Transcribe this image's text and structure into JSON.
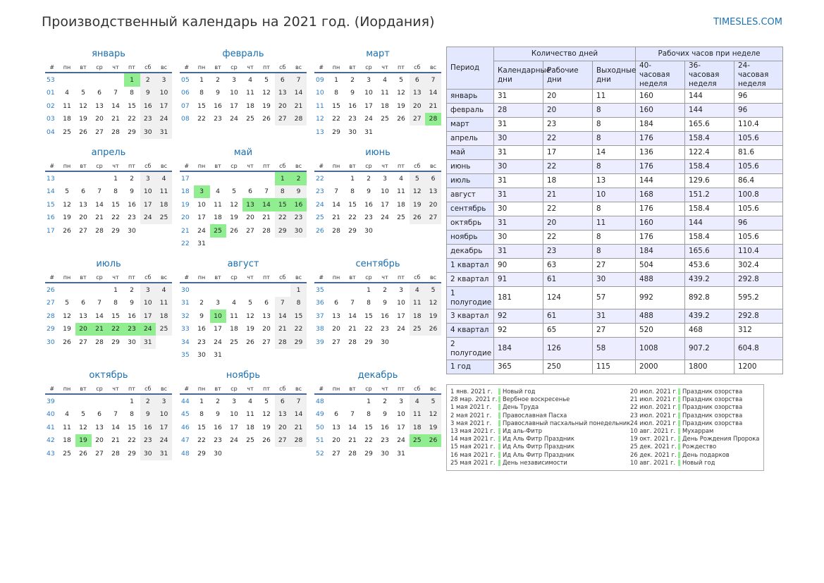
{
  "header": {
    "title": "Производственный календарь на 2021 год. (Иордания)",
    "site": "TIMESLES.COM"
  },
  "weekday_header": [
    "#",
    "пн",
    "вт",
    "ср",
    "чт",
    "пт",
    "сб",
    "вс"
  ],
  "months": [
    {
      "name": "январь",
      "first_day": 4,
      "days": 31,
      "first_week": 53,
      "holidays": [
        1
      ],
      "weeks": [
        "53",
        "01",
        "02",
        "03",
        "04"
      ]
    },
    {
      "name": "февраль",
      "first_day": 0,
      "days": 28,
      "holidays": [],
      "weeks": [
        "05",
        "06",
        "07",
        "08"
      ]
    },
    {
      "name": "март",
      "first_day": 0,
      "days": 31,
      "holidays": [
        28
      ],
      "weeks": [
        "09",
        "10",
        "11",
        "12",
        "13"
      ]
    },
    {
      "name": "апрель",
      "first_day": 3,
      "days": 30,
      "holidays": [],
      "weeks": [
        "13",
        "14",
        "15",
        "16",
        "17"
      ]
    },
    {
      "name": "май",
      "first_day": 5,
      "days": 31,
      "holidays": [
        1,
        2,
        3,
        13,
        14,
        15,
        16,
        25
      ],
      "weeks": [
        "17",
        "18",
        "19",
        "20",
        "21",
        "22"
      ]
    },
    {
      "name": "июнь",
      "first_day": 1,
      "days": 30,
      "holidays": [],
      "weeks": [
        "22",
        "23",
        "24",
        "25",
        "26"
      ]
    },
    {
      "name": "июль",
      "first_day": 3,
      "days": 31,
      "holidays": [
        20,
        21,
        22,
        23,
        24
      ],
      "weeks": [
        "26",
        "27",
        "28",
        "29",
        "30"
      ]
    },
    {
      "name": "август",
      "first_day": 6,
      "days": 31,
      "holidays": [
        10
      ],
      "weeks": [
        "30",
        "31",
        "32",
        "33",
        "34",
        "35"
      ]
    },
    {
      "name": "сентябрь",
      "first_day": 2,
      "days": 30,
      "holidays": [],
      "weeks": [
        "35",
        "36",
        "37",
        "38",
        "39"
      ]
    },
    {
      "name": "октябрь",
      "first_day": 4,
      "days": 31,
      "holidays": [
        19
      ],
      "weeks": [
        "39",
        "40",
        "41",
        "42",
        "43"
      ]
    },
    {
      "name": "ноябрь",
      "first_day": 0,
      "days": 30,
      "holidays": [],
      "weeks": [
        "44",
        "45",
        "46",
        "47",
        "48"
      ]
    },
    {
      "name": "декабрь",
      "first_day": 2,
      "days": 31,
      "holidays": [
        25,
        26
      ],
      "weeks": [
        "48",
        "49",
        "50",
        "51",
        "52"
      ]
    }
  ],
  "stats": {
    "period_label": "Период",
    "group_days": "Количество дней",
    "group_hours": "Рабочих часов при неделе",
    "columns": [
      "Календарные дни",
      "Рабочие дни",
      "Выходные дни",
      "40-часовая неделя",
      "36-часовая неделя",
      "24-часовая неделя"
    ],
    "rows": [
      [
        "январь",
        "31",
        "20",
        "11",
        "160",
        "144",
        "96"
      ],
      [
        "февраль",
        "28",
        "20",
        "8",
        "160",
        "144",
        "96"
      ],
      [
        "март",
        "31",
        "23",
        "8",
        "184",
        "165.6",
        "110.4"
      ],
      [
        "апрель",
        "30",
        "22",
        "8",
        "176",
        "158.4",
        "105.6"
      ],
      [
        "май",
        "31",
        "17",
        "14",
        "136",
        "122.4",
        "81.6"
      ],
      [
        "июнь",
        "30",
        "22",
        "8",
        "176",
        "158.4",
        "105.6"
      ],
      [
        "июль",
        "31",
        "18",
        "13",
        "144",
        "129.6",
        "86.4"
      ],
      [
        "август",
        "31",
        "21",
        "10",
        "168",
        "151.2",
        "100.8"
      ],
      [
        "сентябрь",
        "30",
        "22",
        "8",
        "176",
        "158.4",
        "105.6"
      ],
      [
        "октябрь",
        "31",
        "20",
        "11",
        "160",
        "144",
        "96"
      ],
      [
        "ноябрь",
        "30",
        "22",
        "8",
        "176",
        "158.4",
        "105.6"
      ],
      [
        "декабрь",
        "31",
        "23",
        "8",
        "184",
        "165.6",
        "110.4"
      ],
      [
        "1 квартал",
        "90",
        "63",
        "27",
        "504",
        "453.6",
        "302.4"
      ],
      [
        "2 квартал",
        "91",
        "61",
        "30",
        "488",
        "439.2",
        "292.8"
      ],
      [
        "1 полугодие",
        "181",
        "124",
        "57",
        "992",
        "892.8",
        "595.2"
      ],
      [
        "3 квартал",
        "92",
        "61",
        "31",
        "488",
        "439.2",
        "292.8"
      ],
      [
        "4 квартал",
        "92",
        "65",
        "27",
        "520",
        "468",
        "312"
      ],
      [
        "2 полугодие",
        "184",
        "126",
        "58",
        "1008",
        "907.2",
        "604.8"
      ],
      [
        "1 год",
        "365",
        "250",
        "115",
        "2000",
        "1800",
        "1200"
      ]
    ]
  },
  "holidays_left": [
    [
      "1 янв. 2021 г.",
      "Новый год"
    ],
    [
      "28 мар. 2021 г.",
      "Вербное воскресенье"
    ],
    [
      "1 мая 2021 г.",
      "День Труда"
    ],
    [
      "2 мая 2021 г.",
      "Православная Пасха"
    ],
    [
      "3 мая 2021 г.",
      "Православный пасхальный понедельник"
    ],
    [
      "13 мая 2021 г.",
      "Ид аль-Фитр"
    ],
    [
      "14 мая 2021 г.",
      "Ид Аль Фитр Праздник"
    ],
    [
      "15 мая 2021 г.",
      "Ид Аль Фитр Праздник"
    ],
    [
      "16 мая 2021 г.",
      "Ид Аль Фитр Праздник"
    ],
    [
      "25 мая 2021 г.",
      "День независимости"
    ]
  ],
  "holidays_right": [
    [
      "20 июл. 2021 г.",
      "Праздник озорства"
    ],
    [
      "21 июл. 2021 г.",
      "Праздник озорства"
    ],
    [
      "22 июл. 2021 г.",
      "Праздник озорства"
    ],
    [
      "23 июл. 2021 г.",
      "Праздник озорства"
    ],
    [
      "24 июл. 2021 г.",
      "Праздник озорства"
    ],
    [
      "10 авг. 2021 г.",
      "Мухаррам"
    ],
    [
      "19 окт. 2021 г.",
      "День Рождения Пророка"
    ],
    [
      "25 дек. 2021 г.",
      "Рождество"
    ],
    [
      "26 дек. 2021 г.",
      "День подарков"
    ],
    [
      "10 авг. 2021 г.",
      "Новый год"
    ]
  ]
}
